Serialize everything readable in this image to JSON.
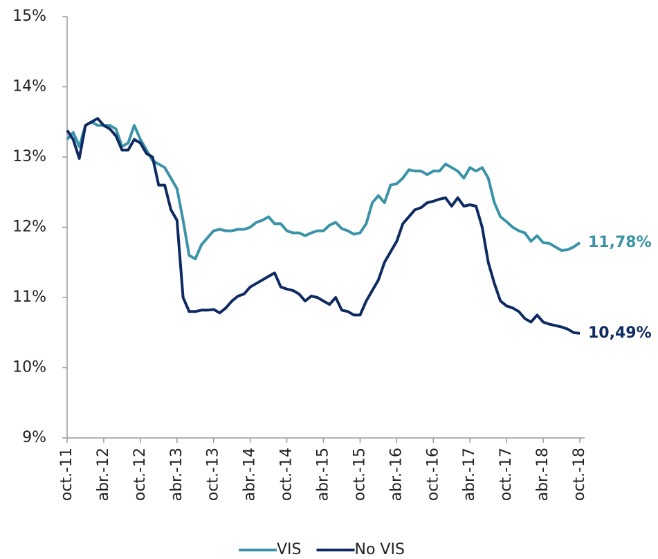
{
  "chart_data": {
    "type": "line",
    "categories": [
      "oct.-11",
      null,
      null,
      null,
      null,
      null,
      "abr.-12",
      null,
      null,
      null,
      null,
      null,
      "oct.-12",
      null,
      null,
      null,
      null,
      null,
      "abr.-13",
      null,
      null,
      null,
      null,
      null,
      "oct.-13",
      null,
      null,
      null,
      null,
      null,
      "abr.-14",
      null,
      null,
      null,
      null,
      null,
      "oct.-14",
      null,
      null,
      null,
      null,
      null,
      "abr.-15",
      null,
      null,
      null,
      null,
      null,
      "oct.-15",
      null,
      null,
      null,
      null,
      null,
      "abr.-16",
      null,
      null,
      null,
      null,
      null,
      "oct.-16",
      null,
      null,
      null,
      null,
      null,
      "abr.-17",
      null,
      null,
      null,
      null,
      null,
      "oct.-17",
      null,
      null,
      null,
      null,
      null,
      "abr.-18",
      null,
      null,
      null,
      null,
      null,
      "oct.-18"
    ],
    "series": [
      {
        "name": "VIS",
        "color": "#3a93a8",
        "values": [
          13.25,
          13.35,
          13.15,
          13.45,
          13.5,
          13.45,
          13.45,
          13.45,
          13.4,
          13.15,
          13.2,
          13.45,
          13.25,
          13.1,
          12.95,
          12.9,
          12.85,
          12.7,
          12.55,
          12.1,
          11.6,
          11.55,
          11.75,
          11.85,
          11.95,
          11.97,
          11.95,
          11.95,
          11.97,
          11.97,
          12.0,
          12.07,
          12.1,
          12.15,
          12.05,
          12.05,
          11.95,
          11.92,
          11.92,
          11.88,
          11.92,
          11.95,
          11.95,
          12.03,
          12.07,
          11.98,
          11.95,
          11.9,
          11.92,
          12.05,
          12.35,
          12.45,
          12.35,
          12.6,
          12.62,
          12.7,
          12.82,
          12.8,
          12.8,
          12.75,
          12.8,
          12.8,
          12.9,
          12.85,
          12.8,
          12.7,
          12.85,
          12.8,
          12.85,
          12.7,
          12.35,
          12.15,
          12.08,
          12.0,
          11.95,
          11.92,
          11.8,
          11.88,
          11.78,
          11.77,
          11.72,
          11.67,
          11.68,
          11.72,
          11.78
        ],
        "value_labels": [
          null,
          null,
          null,
          null,
          null,
          null,
          null,
          null,
          null,
          null,
          null,
          null,
          null,
          null,
          null,
          null,
          null,
          null,
          null,
          null,
          null,
          null,
          null,
          null,
          null,
          null,
          null,
          null,
          null,
          null,
          null,
          null,
          null,
          null,
          null,
          null,
          null,
          null,
          null,
          null,
          null,
          null,
          null,
          null,
          null,
          null,
          null,
          null,
          null,
          null,
          null,
          null,
          null,
          null,
          null,
          null,
          null,
          null,
          null,
          null,
          null,
          null,
          null,
          null,
          null,
          null,
          null,
          null,
          null,
          null,
          null,
          null,
          null,
          null,
          null,
          null,
          null,
          null,
          null,
          null,
          null,
          null,
          null,
          null,
          "11,78%"
        ]
      },
      {
        "name": "No VIS",
        "color": "#0d2a63",
        "values": [
          13.38,
          13.25,
          12.98,
          13.45,
          13.5,
          13.55,
          13.45,
          13.4,
          13.3,
          13.1,
          13.1,
          13.25,
          13.2,
          13.05,
          13.0,
          12.6,
          12.6,
          12.25,
          12.1,
          11.0,
          10.8,
          10.8,
          10.82,
          10.82,
          10.83,
          10.78,
          10.85,
          10.95,
          11.02,
          11.05,
          11.15,
          11.2,
          11.25,
          11.3,
          11.35,
          11.15,
          11.12,
          11.1,
          11.05,
          10.95,
          11.02,
          11.0,
          10.95,
          10.9,
          11.0,
          10.82,
          10.8,
          10.75,
          10.75,
          10.95,
          11.1,
          11.25,
          11.5,
          11.65,
          11.8,
          12.05,
          12.15,
          12.25,
          12.28,
          12.35,
          12.37,
          12.4,
          12.42,
          12.3,
          12.42,
          12.3,
          12.32,
          12.3,
          12.0,
          11.5,
          11.2,
          10.95,
          10.88,
          10.85,
          10.8,
          10.7,
          10.65,
          10.75,
          10.65,
          10.62,
          10.6,
          10.58,
          10.55,
          10.5,
          10.49
        ],
        "value_labels": [
          null,
          null,
          null,
          null,
          null,
          null,
          null,
          null,
          null,
          null,
          null,
          null,
          null,
          null,
          null,
          null,
          null,
          null,
          null,
          null,
          null,
          null,
          null,
          null,
          null,
          null,
          null,
          null,
          null,
          null,
          null,
          null,
          null,
          null,
          null,
          null,
          null,
          null,
          null,
          null,
          null,
          null,
          null,
          null,
          null,
          null,
          null,
          null,
          null,
          null,
          null,
          null,
          null,
          null,
          null,
          null,
          null,
          null,
          null,
          null,
          null,
          null,
          null,
          null,
          null,
          null,
          null,
          null,
          null,
          null,
          null,
          null,
          null,
          null,
          null,
          null,
          null,
          null,
          null,
          null,
          null,
          null,
          null,
          null,
          "10,49%"
        ]
      }
    ],
    "ylim": [
      9,
      15
    ],
    "yticks": [
      {
        "value": 9,
        "label": "9%"
      },
      {
        "value": 10,
        "label": "10%"
      },
      {
        "value": 11,
        "label": "11%"
      },
      {
        "value": 12,
        "label": "12%"
      },
      {
        "value": 13,
        "label": "13%"
      },
      {
        "value": 14,
        "label": "14%"
      },
      {
        "value": 15,
        "label": "15%"
      }
    ],
    "grid": false,
    "legend": "bottom"
  }
}
